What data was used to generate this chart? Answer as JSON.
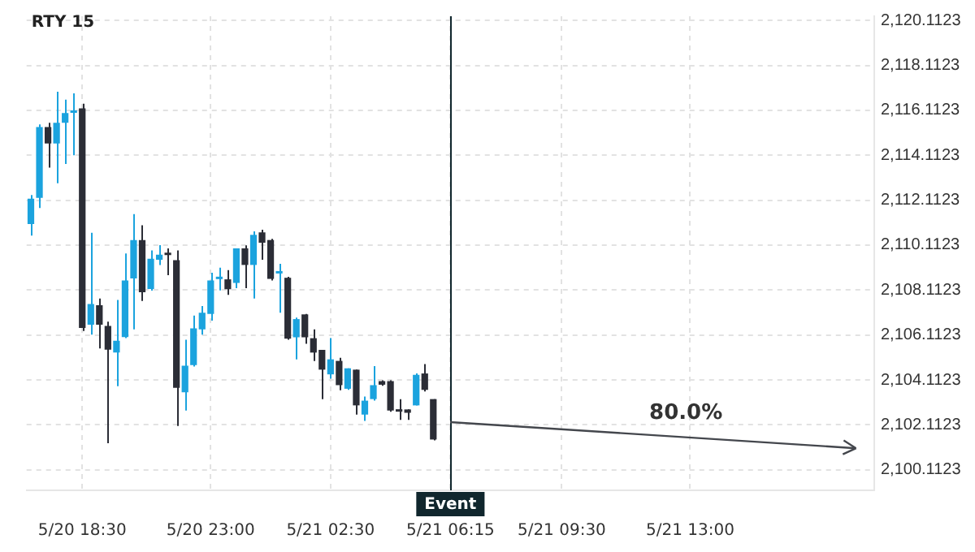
{
  "chart_data": {
    "type": "candlestick",
    "title": "RTY 15",
    "categories": [
      null,
      null,
      null,
      null,
      null,
      null,
      "5/20 18:30",
      null,
      null,
      null,
      null,
      null,
      null,
      null,
      null,
      null,
      null,
      null,
      null,
      null,
      null,
      "5/20 23:00",
      null,
      null,
      null,
      null,
      null,
      null,
      null,
      null,
      null,
      null,
      null,
      null,
      null,
      "5/21 02:30",
      null,
      null,
      null,
      null,
      null,
      null,
      null,
      null,
      null,
      null,
      null,
      null,
      null,
      "5/21 06:15",
      null,
      null,
      null,
      null,
      null,
      null,
      null,
      null,
      null,
      null,
      null,
      null,
      "5/21 09:30",
      null,
      null,
      null,
      null,
      null,
      null,
      null,
      null,
      null,
      null,
      null,
      null,
      null,
      null,
      "5/21 13:00",
      null,
      null,
      null,
      null,
      null,
      null,
      null,
      null,
      null,
      null,
      null,
      null,
      null,
      null,
      null,
      null,
      null,
      null,
      null,
      null,
      null
    ],
    "ylim": [
      2099.2,
      2120.3
    ],
    "yticks": [
      {
        "value": 2100.1123,
        "label": "2,100.1123"
      },
      {
        "value": 2102.1123,
        "label": "2,102.1123"
      },
      {
        "value": 2104.1123,
        "label": "2,104.1123"
      },
      {
        "value": 2106.1123,
        "label": "2,106.1123"
      },
      {
        "value": 2108.1123,
        "label": "2,108.1123"
      },
      {
        "value": 2110.1123,
        "label": "2,110.1123"
      },
      {
        "value": 2112.1123,
        "label": "2,112.1123"
      },
      {
        "value": 2114.1123,
        "label": "2,114.1123"
      },
      {
        "value": 2116.1123,
        "label": "2,116.1123"
      },
      {
        "value": 2118.1123,
        "label": "2,118.1123"
      },
      {
        "value": 2120.1123,
        "label": "2,120.1123"
      }
    ],
    "grid": true,
    "series": [
      {
        "type": "candlestick",
        "ohlc": [
          [
            2111.05,
            2112.34,
            2110.54,
            2112.18
          ],
          [
            2112.22,
            2115.49,
            2111.76,
            2115.37
          ],
          [
            2115.37,
            2115.56,
            2113.56,
            2114.64
          ],
          [
            2114.64,
            2116.94,
            2112.87,
            2115.56
          ],
          [
            2115.56,
            2116.59,
            2113.72,
            2115.99
          ],
          [
            2116.0,
            2116.87,
            2114.11,
            2116.06
          ],
          [
            2116.2,
            2116.41,
            2106.29,
            2106.43
          ],
          [
            2106.57,
            2110.66,
            2106.13,
            2107.49
          ],
          [
            2107.44,
            2107.74,
            2105.51,
            2106.57
          ],
          [
            2106.52,
            2106.71,
            2101.3,
            2105.46
          ],
          [
            2105.33,
            2107.67,
            2103.83,
            2105.86
          ],
          [
            2106.02,
            2109.74,
            2105.97,
            2108.54
          ],
          [
            2108.63,
            2111.49,
            2106.36,
            2110.34
          ],
          [
            2110.34,
            2111.0,
            2107.63,
            2108.02
          ],
          [
            2108.16,
            2109.88,
            2108.09,
            2109.51
          ],
          [
            2109.46,
            2110.11,
            2109.23,
            2109.69
          ],
          [
            2109.76,
            2109.97,
            2108.77,
            2109.67
          ],
          [
            2109.44,
            2109.88,
            2102.06,
            2103.76
          ],
          [
            2103.56,
            2105.9,
            2102.75,
            2104.75
          ],
          [
            2104.77,
            2106.98,
            2104.71,
            2106.41
          ],
          [
            2106.36,
            2107.4,
            2106.13,
            2107.1
          ],
          [
            2107.05,
            2108.88,
            2106.75,
            2108.54
          ],
          [
            2108.6,
            2109.11,
            2108.1,
            2108.7
          ],
          [
            2108.59,
            2109.0,
            2107.9,
            2108.15
          ],
          [
            2108.43,
            2109.97,
            2108.2,
            2109.97
          ],
          [
            2109.97,
            2110.1,
            2108.2,
            2109.23
          ],
          [
            2109.23,
            2110.73,
            2107.74,
            2110.57
          ],
          [
            2110.68,
            2110.8,
            2109.46,
            2110.22
          ],
          [
            2110.34,
            2110.39,
            2108.54,
            2108.61
          ],
          [
            2108.85,
            2109.28,
            2107.1,
            2108.9
          ],
          [
            2108.66,
            2108.7,
            2105.9,
            2105.95
          ],
          [
            2106.01,
            2106.89,
            2105.03,
            2106.82
          ],
          [
            2107.03,
            2107.05,
            2105.72,
            2106.01
          ],
          [
            2105.97,
            2106.36,
            2104.95,
            2105.33
          ],
          [
            2105.45,
            2105.45,
            2103.26,
            2104.57
          ],
          [
            2104.36,
            2105.97,
            2104.17,
            2105.03
          ],
          [
            2104.96,
            2105.1,
            2103.65,
            2103.88
          ],
          [
            2103.72,
            2104.63,
            2103.67,
            2104.63
          ],
          [
            2104.57,
            2104.57,
            2102.57,
            2102.98
          ],
          [
            2102.57,
            2103.37,
            2102.29,
            2103.19
          ],
          [
            2103.26,
            2104.73,
            2103.19,
            2103.88
          ],
          [
            2104.06,
            2104.1,
            2103.85,
            2103.9
          ],
          [
            2104.06,
            2104.1,
            2102.7,
            2102.75
          ],
          [
            2102.8,
            2103.26,
            2102.33,
            2102.7
          ],
          [
            2102.8,
            2102.8,
            2102.33,
            2102.65
          ],
          [
            2102.98,
            2104.4,
            2102.98,
            2104.34
          ],
          [
            2104.4,
            2104.82,
            2103.6,
            2103.67
          ],
          [
            2103.26,
            2103.26,
            2101.42,
            2101.46
          ],
          null,
          null,
          null,
          null,
          null,
          null,
          null,
          null,
          null,
          null,
          null,
          null,
          null,
          null,
          null,
          null,
          null,
          null,
          null,
          null,
          null,
          null,
          null,
          null,
          null,
          null,
          null,
          null,
          null,
          null,
          null,
          null,
          null,
          null,
          null,
          null,
          null,
          null,
          null,
          null,
          null,
          null,
          null,
          null,
          null,
          null,
          null,
          null,
          null,
          null,
          null
        ],
        "colors": [
          "#1ba3de",
          "#1ba3de",
          "#2b2d36",
          "#1ba3de",
          "#1ba3de",
          "#1ba3de",
          "#2b2d36",
          "#1ba3de",
          "#2b2d36",
          "#2b2d36",
          "#1ba3de",
          "#1ba3de",
          "#1ba3de",
          "#2b2d36",
          "#1ba3de",
          "#1ba3de",
          "#2b2d36",
          "#2b2d36",
          "#1ba3de",
          "#1ba3de",
          "#1ba3de",
          "#1ba3de",
          "#1ba3de",
          "#2b2d36",
          "#1ba3de",
          "#2b2d36",
          "#1ba3de",
          "#2b2d36",
          "#2b2d36",
          "#1ba3de",
          "#2b2d36",
          "#1ba3de",
          "#2b2d36",
          "#2b2d36",
          "#2b2d36",
          "#1ba3de",
          "#2b2d36",
          "#1ba3de",
          "#2b2d36",
          "#1ba3de",
          "#1ba3de",
          "#2b2d36",
          "#2b2d36",
          "#2b2d36",
          "#2b2d36",
          "#1ba3de",
          "#2b2d36",
          "#2b2d36",
          null,
          null,
          null,
          null,
          null,
          null,
          null,
          null,
          null,
          null,
          null,
          null,
          null,
          null,
          null,
          null,
          null,
          null,
          null,
          null,
          null,
          null,
          null,
          null,
          null,
          null,
          null,
          null,
          null,
          null,
          null,
          null,
          null,
          null,
          null,
          null,
          null,
          null,
          null,
          null,
          null,
          null,
          null,
          null,
          null,
          null,
          null,
          null,
          null,
          null,
          null
        ]
      }
    ],
    "ref_lines": [
      {
        "axis": "x",
        "value": "5/21 06:15",
        "label": "Event",
        "color": "#10262d"
      }
    ],
    "annotations": [
      "80.0%"
    ]
  }
}
